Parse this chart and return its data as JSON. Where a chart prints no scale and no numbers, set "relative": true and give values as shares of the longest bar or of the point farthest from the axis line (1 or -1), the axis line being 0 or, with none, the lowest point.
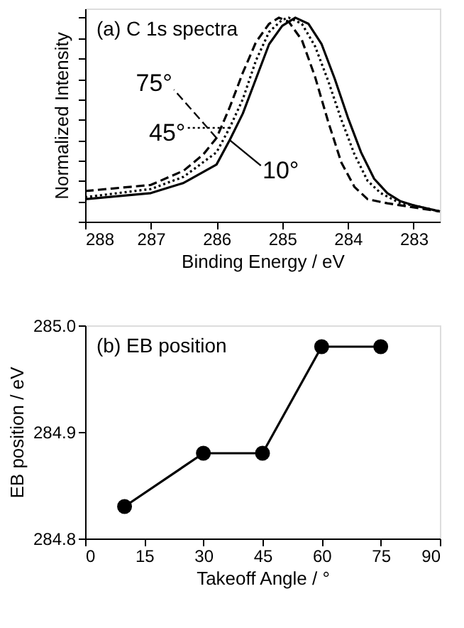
{
  "chart_data": [
    {
      "type": "line",
      "title": "(a) C 1s spectra",
      "xlabel": "Binding Energy / eV",
      "ylabel": "Normalized Intensity",
      "relative": true,
      "xlim": [
        288,
        282.6
      ],
      "xticks": [
        288,
        287,
        286,
        285,
        284,
        283
      ],
      "tick_labels": "x",
      "legend": "left",
      "marker": "none",
      "grid": false,
      "series": [
        {
          "name": "10°",
          "color": "#000000",
          "line_style": "solid",
          "x": [
            288,
            287,
            286.5,
            286,
            285.8,
            285.6,
            285.4,
            285.2,
            285,
            284.8,
            284.6,
            284.4,
            284.2,
            284,
            283.8,
            283.6,
            283.4,
            283.2,
            283,
            282.6
          ],
          "values": [
            0.11,
            0.14,
            0.19,
            0.28,
            0.4,
            0.53,
            0.7,
            0.87,
            0.96,
            1.0,
            0.97,
            0.87,
            0.7,
            0.51,
            0.34,
            0.21,
            0.14,
            0.1,
            0.08,
            0.05
          ]
        },
        {
          "name": "45°",
          "color": "#000000",
          "line_style": "dotted",
          "x": [
            288,
            287,
            286.5,
            286,
            285.8,
            285.6,
            285.4,
            285.2,
            285,
            284.9,
            284.7,
            284.5,
            284.3,
            284.1,
            283.9,
            283.7,
            283.5,
            283.2,
            283,
            282.6
          ],
          "values": [
            0.12,
            0.16,
            0.22,
            0.34,
            0.46,
            0.6,
            0.79,
            0.93,
            0.99,
            1.0,
            0.97,
            0.86,
            0.69,
            0.5,
            0.33,
            0.2,
            0.14,
            0.09,
            0.08,
            0.05
          ]
        },
        {
          "name": "75°",
          "color": "#000000",
          "line_style": "dashed",
          "x": [
            288,
            287,
            286.5,
            286.2,
            286,
            285.8,
            285.6,
            285.4,
            285.2,
            285.05,
            284.9,
            284.7,
            284.5,
            284.3,
            284.1,
            283.9,
            283.7,
            283.4,
            283,
            282.6
          ],
          "values": [
            0.15,
            0.18,
            0.25,
            0.33,
            0.41,
            0.56,
            0.73,
            0.88,
            0.97,
            1.0,
            0.98,
            0.89,
            0.71,
            0.49,
            0.29,
            0.17,
            0.11,
            0.09,
            0.07,
            0.05
          ]
        }
      ]
    },
    {
      "type": "line",
      "title": "(b) EB position",
      "xlabel": "Takeoff Angle / °",
      "ylabel": "EB position / eV",
      "xlim": [
        0,
        90
      ],
      "xticks": [
        0,
        15,
        30,
        45,
        60,
        75,
        90
      ],
      "ylim": [
        284.8,
        285.0
      ],
      "yticks": [
        284.8,
        284.9,
        {
          "value": 285.0,
          "label": "285.0"
        }
      ],
      "marker": "circle",
      "line_style": "solid",
      "grid": false,
      "series": [
        {
          "color": "#000000",
          "x": [
            10,
            30,
            45,
            60,
            75
          ],
          "values": [
            284.83,
            284.88,
            284.88,
            284.98,
            284.98
          ]
        }
      ]
    }
  ]
}
